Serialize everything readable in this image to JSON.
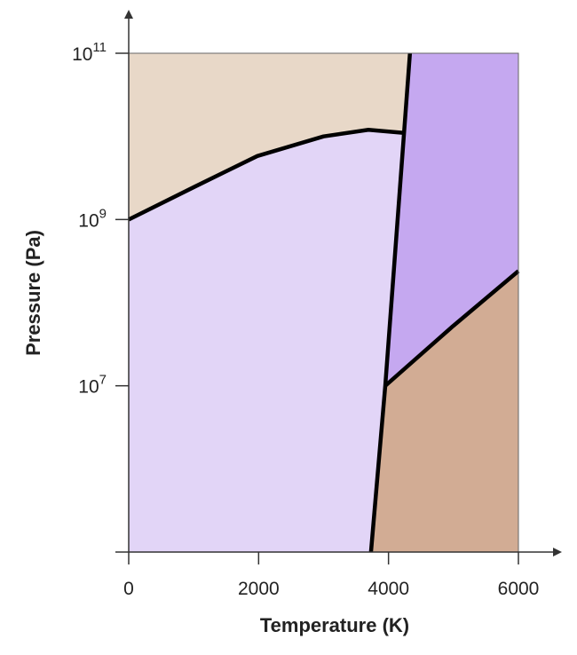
{
  "chart_data": {
    "type": "phase-diagram",
    "xlabel": "Temperature (K)",
    "ylabel": "Pressure (Pa)",
    "xlim": [
      0,
      6000
    ],
    "xticks": [
      0,
      2000,
      4000,
      6000
    ],
    "ylim": [
      100000,
      100000000000
    ],
    "ylog": true,
    "yticks": [
      {
        "value": 10000000,
        "label": "10^7"
      },
      {
        "value": 1000000000,
        "label": "10^9"
      },
      {
        "value": 100000000000,
        "label": "10^11"
      }
    ],
    "region_colors": [
      "#e2d5f7",
      "#e8d8c8",
      "#c5a8f0",
      "#d2ac94"
    ],
    "line_color": "#000000",
    "boundaries": [
      {
        "x": [
          0,
          1025,
          1980,
          3000,
          3690,
          4237
        ],
        "y": [
          1000000000,
          2500000000,
          5800000000,
          10000000000,
          12000000000,
          11000000000
        ]
      },
      {
        "x": [
          3730,
          3950,
          4330
        ],
        "y": [
          100000,
          10000000,
          100000000000
        ]
      },
      {
        "x": [
          3950,
          4990,
          6000
        ],
        "y": [
          10000000,
          52000000,
          240000000
        ]
      }
    ]
  }
}
